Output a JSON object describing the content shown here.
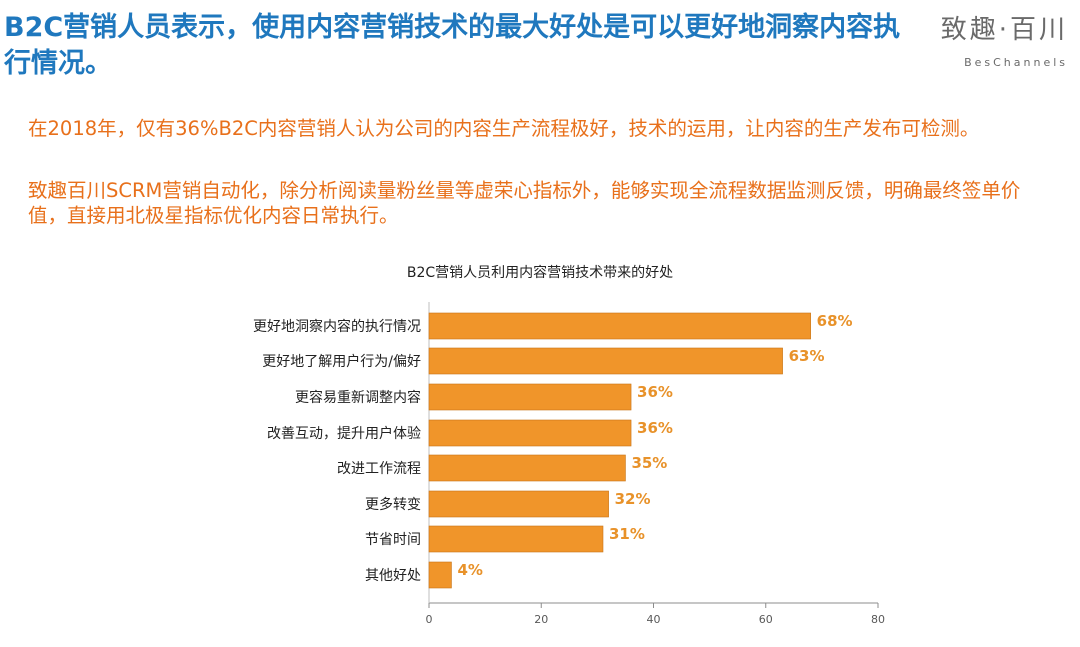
{
  "header": {
    "title": "B2C营销人员表示，使用内容营销技术的最大好处是可以更好地洞察内容执行情况。",
    "logo_cn": "致趣·百川",
    "logo_en": "BesChannels"
  },
  "lead_paragraphs": [
    "在2018年，仅有36%B2C内容营销人认为公司的内容生产流程极好，技术的运用，让内容的生产发布可检测。",
    "致趣百川SCRM营销自动化，除分析阅读量粉丝量等虚荣心指标外，能够实现全流程数据监测反馈，明确最终签单价值，直接用北极星指标优化内容日常执行。"
  ],
  "colors": {
    "headline": "#1f78be",
    "lead": "#e8701b",
    "bar": "#f0952a",
    "bar_stroke": "#c77416",
    "value_label": "#e8922a"
  },
  "chart_data": {
    "type": "bar",
    "orientation": "horizontal",
    "title": "B2C营销人员利用内容营销技术带来的好处",
    "categories": [
      "更好地洞察内容的执行情况",
      "更好地了解用户行为/偏好",
      "更容易重新调整内容",
      "改善互动，提升用户体验",
      "改进工作流程",
      "更多转变",
      "节省时间",
      "其他好处"
    ],
    "values": [
      68,
      63,
      36,
      36,
      35,
      32,
      31,
      4
    ],
    "value_labels": [
      "68%",
      "63%",
      "36%",
      "36%",
      "35%",
      "32%",
      "31%",
      "4%"
    ],
    "xlim": [
      0,
      80
    ],
    "xticks": [
      0,
      20,
      40,
      60,
      80
    ],
    "grid": false
  }
}
